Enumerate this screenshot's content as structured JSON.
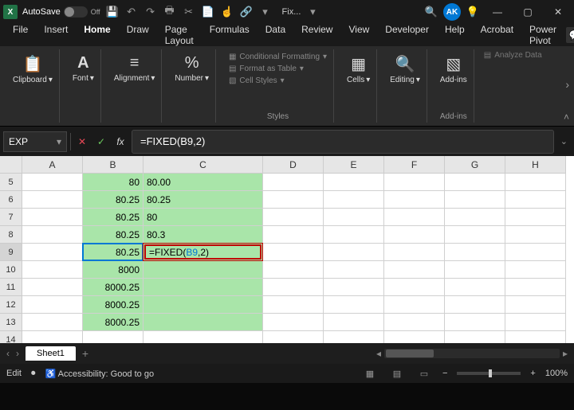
{
  "title": {
    "autosave_label": "AutoSave",
    "autosave_state": "Off",
    "search_hint": "Fix...",
    "avatar": "AK"
  },
  "tabs": {
    "items": [
      "File",
      "Insert",
      "Home",
      "Draw",
      "Page Layout",
      "Formulas",
      "Data",
      "Review",
      "View",
      "Developer",
      "Help",
      "Acrobat",
      "Power Pivot"
    ],
    "active_index": 2
  },
  "ribbon": {
    "clipboard": {
      "label": "Clipboard",
      "icon": "📋"
    },
    "font": {
      "label": "Font",
      "icon": "A"
    },
    "alignment": {
      "label": "Alignment",
      "icon": "≡"
    },
    "number": {
      "label": "Number",
      "icon": "%"
    },
    "styles": {
      "cond_format": "Conditional Formatting",
      "format_table": "Format as Table",
      "cell_styles": "Cell Styles",
      "group_label": "Styles"
    },
    "cells": {
      "label": "Cells",
      "icon": "▦"
    },
    "editing": {
      "label": "Editing",
      "icon": "🔍"
    },
    "addins": {
      "label": "Add-ins",
      "icon": "▧",
      "group_label": "Add-ins"
    },
    "analyze": {
      "label": "Analyze Data",
      "icon": "▤"
    }
  },
  "formula_bar": {
    "namebox": "EXP",
    "formula": "=FIXED(B9,2)",
    "edit_prefix": "=FIXED(",
    "edit_ref": "B9",
    "edit_suffix": ",2)"
  },
  "grid": {
    "columns": [
      "A",
      "B",
      "C",
      "D",
      "E",
      "F",
      "G",
      "H"
    ],
    "row_start": 5,
    "row_count": 10,
    "active_row": 9,
    "col_b": {
      "5": "80",
      "6": "80.25",
      "7": "80.25",
      "8": "80.25",
      "9": "80.25",
      "10": "8000",
      "11": "8000.25",
      "12": "8000.25",
      "13": "8000.25"
    },
    "col_c": {
      "5": "80.00",
      "6": "80.25",
      "7": "80",
      "8": "80.3"
    },
    "green_fill": {
      "col_b": [
        5,
        6,
        7,
        8,
        9,
        10,
        11,
        12,
        13
      ],
      "col_c": [
        5,
        6,
        7,
        8,
        9,
        10,
        11,
        12,
        13
      ]
    },
    "highlight_cell": "B9",
    "accent_color": "#a9e5a9",
    "edit_border": "#c00000"
  },
  "sheets": {
    "active": "Sheet1"
  },
  "status": {
    "mode": "Edit",
    "accessibility": "Accessibility: Good to go",
    "zoom": "100%"
  }
}
